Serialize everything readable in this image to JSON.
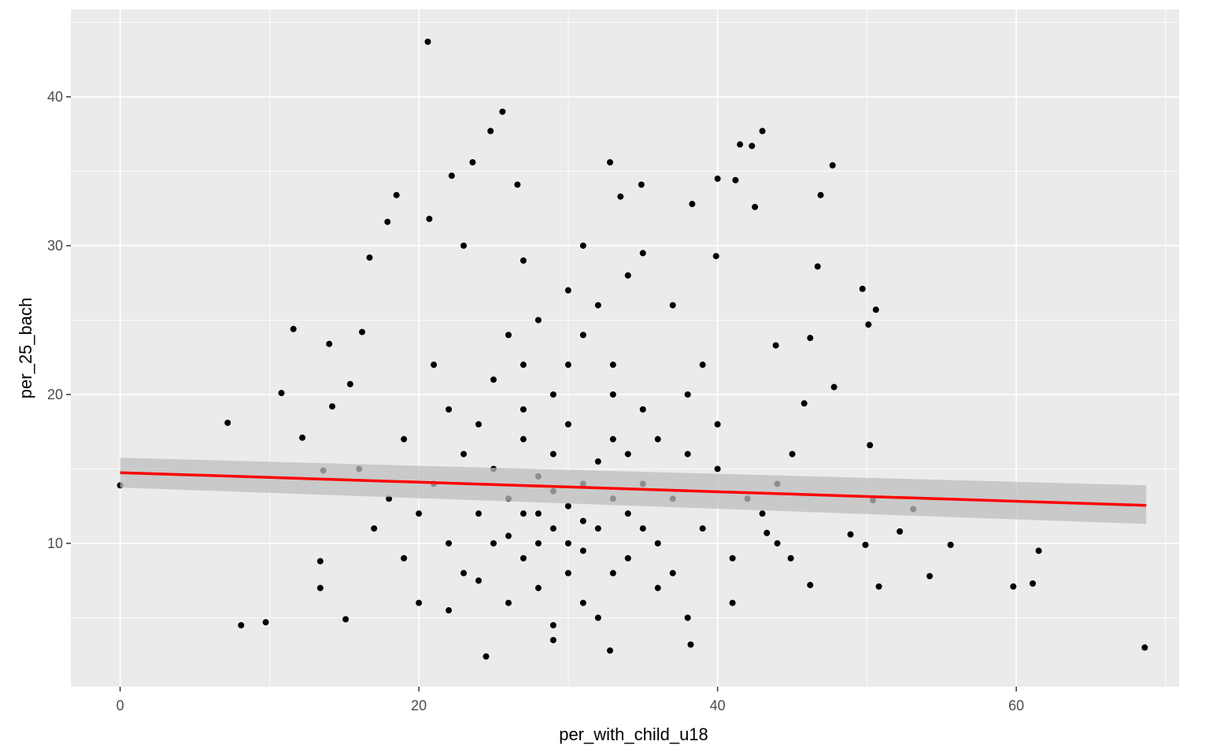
{
  "chart_data": {
    "type": "scatter",
    "x_label": "per_with_child_u18",
    "y_label": "per_25_bach",
    "xlim": [
      -3.3,
      70.9
    ],
    "ylim": [
      0.37,
      45.87
    ],
    "xticks": [
      0,
      20,
      40,
      60
    ],
    "yticks": [
      10,
      20,
      30,
      40
    ],
    "xminor": [
      10,
      30,
      50,
      70
    ],
    "yminor": [
      5,
      15,
      25,
      35,
      45
    ],
    "grid": true,
    "color": "#000000",
    "x": [
      0,
      7.2,
      8.1,
      9.75,
      10.8,
      11.6,
      12.2,
      13.4,
      13.4,
      13.6,
      14.0,
      14.2,
      15.1,
      15.4,
      16.2,
      16.7,
      17.9,
      18.5,
      20.6,
      20.7,
      22.2,
      23.6,
      24.8,
      25.6,
      24.5,
      26.6,
      32.8,
      33.5,
      34.9,
      38.2,
      32.8,
      40.0,
      41.2,
      41.5,
      42.3,
      43.0,
      46.9,
      47.7,
      47.8,
      46.7,
      49.7,
      50.6,
      50.1,
      50.2,
      48.9,
      49.9,
      50.8,
      50.4,
      52.2,
      54.2,
      55.6,
      59.8,
      61.1,
      61.5,
      68.6,
      53.1,
      42.5,
      38.3,
      39.9,
      46.2,
      45.8,
      43.9,
      43.3,
      44.9,
      46.2,
      28,
      30,
      31,
      27,
      29,
      32,
      26,
      33,
      25,
      34,
      30,
      28,
      31,
      29,
      27,
      33,
      35,
      24,
      23,
      36,
      37,
      22,
      30,
      29,
      31,
      28,
      32,
      26,
      34,
      27,
      30,
      31,
      25,
      33,
      35,
      24,
      23,
      36,
      38,
      21,
      39,
      40,
      20,
      19,
      41,
      42,
      26,
      32,
      29,
      30,
      28,
      31,
      29,
      27,
      33,
      35,
      37,
      25,
      24,
      34,
      36,
      22,
      38,
      26,
      32,
      30,
      28,
      34,
      27,
      33,
      39,
      21,
      40,
      19,
      43,
      44,
      18,
      20,
      41,
      29,
      31,
      27,
      35,
      23,
      37,
      44,
      17,
      45,
      16,
      38,
      22
    ],
    "y": [
      13.9,
      18.1,
      4.5,
      4.7,
      20.1,
      24.4,
      17.1,
      8.8,
      7.0,
      14.9,
      23.4,
      19.2,
      4.9,
      20.7,
      24.2,
      29.2,
      31.6,
      33.4,
      43.7,
      31.8,
      34.7,
      35.6,
      37.7,
      39.0,
      2.4,
      34.1,
      35.6,
      33.3,
      34.1,
      3.2,
      2.8,
      34.5,
      34.4,
      36.8,
      36.7,
      37.7,
      33.4,
      35.4,
      20.5,
      28.6,
      27.1,
      25.7,
      24.7,
      16.6,
      10.6,
      9.9,
      7.1,
      12.9,
      10.8,
      7.8,
      9.9,
      7.1,
      7.3,
      9.5,
      3.0,
      12.3,
      32.6,
      32.8,
      29.3,
      23.8,
      19.4,
      23.3,
      10.7,
      9.0,
      7.2,
      12,
      10,
      14,
      9,
      16,
      11,
      13,
      8,
      15,
      12,
      18,
      7,
      6,
      20,
      19,
      17,
      14,
      12,
      16,
      10,
      13,
      10,
      12.5,
      11,
      9.5,
      14.5,
      15.5,
      10.5,
      9,
      17,
      22,
      24,
      21,
      22,
      19,
      18,
      8,
      7,
      16,
      14,
      11,
      15,
      12,
      17,
      9,
      13,
      6,
      5,
      4.5,
      8,
      10,
      11.5,
      13.5,
      12,
      13,
      11,
      8,
      10,
      7.5,
      16,
      17,
      19,
      20,
      24,
      26,
      27,
      25,
      28,
      22,
      20,
      22,
      22,
      18,
      9,
      12,
      14,
      13,
      6,
      6,
      3.5,
      30,
      29,
      29.5,
      30,
      26,
      10,
      11,
      16,
      15,
      5,
      5.5
    ],
    "fit": {
      "color": "#ff0000",
      "band_color": "#bebebe",
      "x": [
        0,
        68.7
      ],
      "y": [
        14.75,
        12.55
      ],
      "lower": [
        13.75,
        11.3
      ],
      "upper": [
        15.75,
        13.9
      ]
    }
  }
}
